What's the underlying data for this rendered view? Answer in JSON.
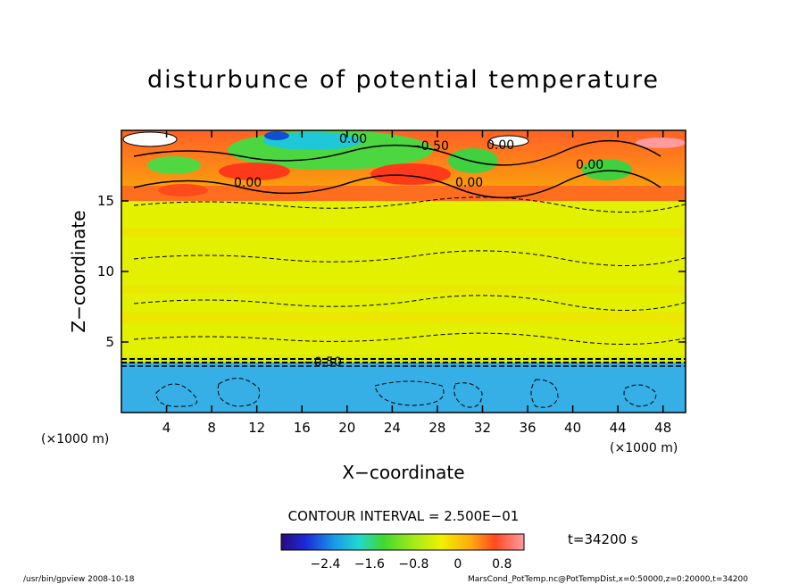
{
  "chart_data": {
    "type": "heatmap",
    "title": "disturbunce of potential temperature",
    "xlabel": "X−coordinate",
    "ylabel": "Z−coordinate",
    "x_unit_left": "(×1000 m)",
    "x_unit_right": "(×1000 m)",
    "xlim": [
      0,
      50
    ],
    "ylim": [
      0,
      20
    ],
    "x_ticks": [
      4,
      8,
      12,
      16,
      20,
      24,
      28,
      32,
      36,
      40,
      44,
      48
    ],
    "y_ticks": [
      5,
      10,
      15
    ],
    "contour_interval_label": "CONTOUR INTERVAL = 2.500E−01",
    "time_label": "t=34200 s",
    "colorbar_ticks": [
      "−2.4",
      "−1.6",
      "−0.8",
      "0",
      "0.8"
    ],
    "colorbar_range": [
      -3.2,
      1.2
    ],
    "contour_labels": [
      "0.00",
      "0.00",
      "−0.50",
      "0.00",
      "−0.50",
      "0.00",
      "0.00"
    ],
    "layers": [
      {
        "z_from": 0,
        "z_to": 3.6,
        "value": -2.4,
        "color": "#36aee6"
      },
      {
        "z_from": 3.6,
        "z_to": 15,
        "value": 0.0,
        "color": "#e3f000"
      },
      {
        "z_from": 15,
        "z_to": 20,
        "value": 0.8,
        "color": "#ff6e1e"
      }
    ]
  },
  "footer": {
    "left": "/usr/bin/gpview   2008-10-18",
    "right": "MarsCond_PotTemp.nc@PotTempDist,x=0:50000,z=0:20000,t=34200"
  },
  "colors": {
    "blue_layer": "#36aee6",
    "mid_layer": "#e3f000",
    "top_layer": "#ff6e1e"
  }
}
